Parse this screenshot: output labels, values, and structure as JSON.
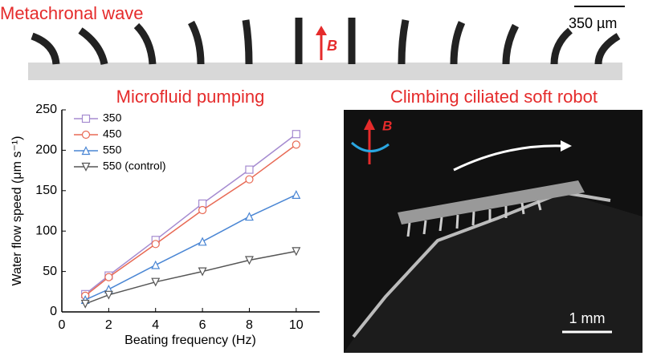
{
  "top_panel": {
    "title": "Metachronal wave",
    "scale_bar": "350 µm",
    "field_label": "B"
  },
  "right_panel": {
    "title": "Climbing ciliated soft robot",
    "field_label": "B",
    "scale_bar": "1 mm"
  },
  "chart_data": {
    "type": "line",
    "title": "Microfluid pumping",
    "x_label": "Beating frequency (Hz)",
    "y_label": "Water flow speed (μm s⁻¹)",
    "x": [
      1,
      2,
      4,
      6,
      8,
      10
    ],
    "series": [
      {
        "name": "350",
        "color": "#a58bd0",
        "marker": "square",
        "values": [
          22,
          45,
          89,
          134,
          176,
          220
        ]
      },
      {
        "name": "450",
        "color": "#e86a55",
        "marker": "circle",
        "values": [
          20,
          43,
          84,
          126,
          164,
          207
        ]
      },
      {
        "name": "550",
        "color": "#4a86d4",
        "marker": "triangle-up",
        "values": [
          15,
          28,
          58,
          87,
          118,
          145
        ]
      },
      {
        "name": "550 (control)",
        "color": "#555555",
        "marker": "triangle-down",
        "values": [
          10,
          21,
          37,
          50,
          64,
          75
        ]
      }
    ],
    "xlim": [
      0,
      11
    ],
    "ylim": [
      0,
      250
    ],
    "xticks": [
      0,
      2,
      4,
      6,
      8,
      10
    ],
    "yticks": [
      0,
      50,
      100,
      150,
      200,
      250
    ]
  }
}
